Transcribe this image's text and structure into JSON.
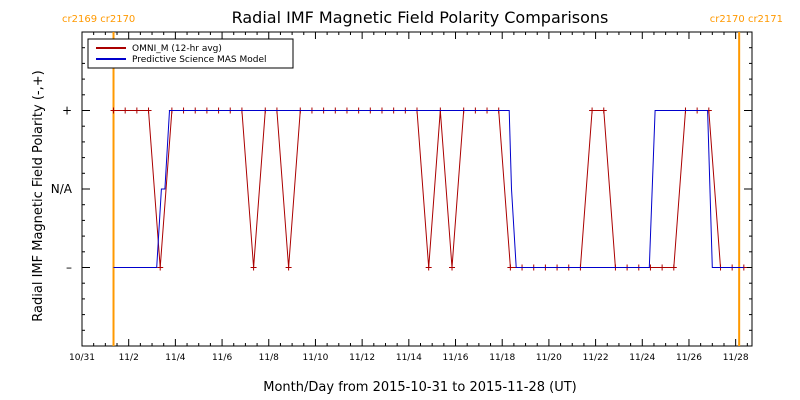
{
  "chart_data": {
    "type": "line",
    "title": "Radial IMF Magnetic Field Polarity Comparisons",
    "xlabel": "Month/Day from 2015-10-31 to 2015-11-28 (UT)",
    "ylabel": "Radial IMF Magnetic Field Polarity (-,+)",
    "x_start_date": "2015-10-31",
    "xlim": [
      0,
      28.7
    ],
    "ylim": [
      -2,
      2
    ],
    "x_ticks": [
      {
        "day": 0,
        "label": "10/31"
      },
      {
        "day": 2,
        "label": "11/2"
      },
      {
        "day": 4,
        "label": "11/4"
      },
      {
        "day": 6,
        "label": "11/6"
      },
      {
        "day": 8,
        "label": "11/8"
      },
      {
        "day": 10,
        "label": "11/10"
      },
      {
        "day": 12,
        "label": "11/12"
      },
      {
        "day": 14,
        "label": "11/14"
      },
      {
        "day": 16,
        "label": "11/16"
      },
      {
        "day": 18,
        "label": "11/18"
      },
      {
        "day": 20,
        "label": "11/20"
      },
      {
        "day": 22,
        "label": "11/22"
      },
      {
        "day": 24,
        "label": "11/24"
      },
      {
        "day": 26,
        "label": "11/26"
      },
      {
        "day": 28,
        "label": "11/28"
      }
    ],
    "y_ticks": [
      {
        "value": 1,
        "label": "+"
      },
      {
        "value": 0,
        "label": "N/A"
      },
      {
        "value": -1,
        "label": "–"
      }
    ],
    "legend_position": "top-left",
    "vlines": [
      {
        "x": 1.35,
        "label": "cr2169 cr2170",
        "color": "#ff9900",
        "label_side": "left"
      },
      {
        "x": 28.15,
        "label": "cr2170 cr2171",
        "color": "#ff9900",
        "label_side": "right"
      }
    ],
    "series": [
      {
        "name": "OMNI_M (12-hr avg)",
        "color": "#aa0000",
        "markers": true,
        "x": [
          1.35,
          1.85,
          2.35,
          2.85,
          3.35,
          3.85,
          4.35,
          4.85,
          5.35,
          5.85,
          6.35,
          6.85,
          7.35,
          7.85,
          8.35,
          8.85,
          9.35,
          9.85,
          10.35,
          10.85,
          11.35,
          11.85,
          12.35,
          12.85,
          13.35,
          13.85,
          14.35,
          14.85,
          15.35,
          15.85,
          16.35,
          16.85,
          17.35,
          17.85,
          18.35,
          18.85,
          19.35,
          19.85,
          20.35,
          20.85,
          21.35,
          21.85,
          22.35,
          22.85,
          23.35,
          23.85,
          24.35,
          24.85,
          25.35,
          25.85,
          26.35,
          26.85,
          27.35,
          27.85,
          28.35
        ],
        "y": [
          1,
          1,
          1,
          1,
          -1,
          1,
          1,
          1,
          1,
          1,
          1,
          1,
          -1,
          1,
          1,
          -1,
          1,
          1,
          1,
          1,
          1,
          1,
          1,
          1,
          1,
          1,
          1,
          -1,
          1,
          -1,
          1,
          1,
          1,
          1,
          -1,
          -1,
          -1,
          -1,
          -1,
          -1,
          -1,
          1,
          1,
          -1,
          -1,
          -1,
          -1,
          -1,
          -1,
          1,
          1,
          1,
          -1,
          -1,
          -1
        ]
      },
      {
        "name": "Predictive Science MAS Model",
        "color": "#0000cc",
        "markers": false,
        "x": [
          1.35,
          3.2,
          3.4,
          3.55,
          3.75,
          18.3,
          18.4,
          18.6,
          24.3,
          24.55,
          26.8,
          27.0,
          27.2,
          28.35
        ],
        "y": [
          -1,
          -1,
          0,
          0,
          1,
          1,
          0,
          -1,
          -1,
          1,
          1,
          -1,
          -1,
          -1
        ]
      }
    ]
  }
}
